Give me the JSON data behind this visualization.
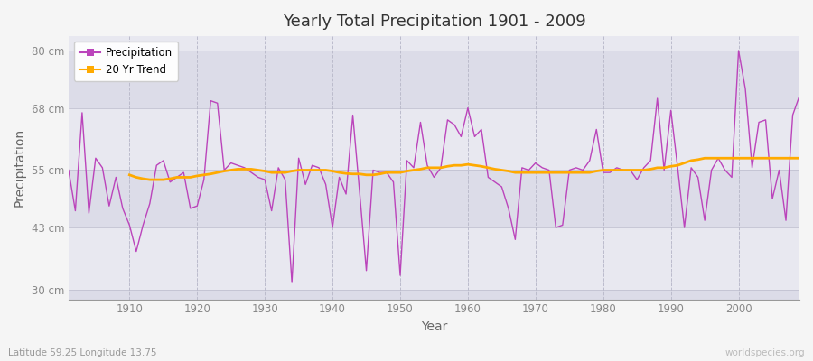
{
  "title": "Yearly Total Precipitation 1901 - 2009",
  "xlabel": "Year",
  "ylabel": "Precipitation",
  "subtitle": "Latitude 59.25 Longitude 13.75",
  "watermark": "worldspecies.org",
  "fig_bg_color": "#f5f5f5",
  "plot_bg_color": "#e8e8f0",
  "band_colors": [
    "#dcdce8",
    "#e8e8f0"
  ],
  "precip_color": "#bb44bb",
  "trend_color": "#ffaa00",
  "ylim": [
    28,
    83
  ],
  "yticks": [
    30,
    43,
    55,
    68,
    80
  ],
  "ytick_labels": [
    "30 cm",
    "43 cm",
    "55 cm",
    "68 cm",
    "80 cm"
  ],
  "xlim": [
    1901,
    2009
  ],
  "xticks": [
    1910,
    1920,
    1930,
    1940,
    1950,
    1960,
    1970,
    1980,
    1990,
    2000
  ],
  "years": [
    1901,
    1902,
    1903,
    1904,
    1905,
    1906,
    1907,
    1908,
    1909,
    1910,
    1911,
    1912,
    1913,
    1914,
    1915,
    1916,
    1917,
    1918,
    1919,
    1920,
    1921,
    1922,
    1923,
    1924,
    1925,
    1926,
    1927,
    1928,
    1929,
    1930,
    1931,
    1932,
    1933,
    1934,
    1935,
    1936,
    1937,
    1938,
    1939,
    1940,
    1941,
    1942,
    1943,
    1944,
    1945,
    1946,
    1947,
    1948,
    1949,
    1950,
    1951,
    1952,
    1953,
    1954,
    1955,
    1956,
    1957,
    1958,
    1959,
    1960,
    1961,
    1962,
    1963,
    1964,
    1965,
    1966,
    1967,
    1968,
    1969,
    1970,
    1971,
    1972,
    1973,
    1974,
    1975,
    1976,
    1977,
    1978,
    1979,
    1980,
    1981,
    1982,
    1983,
    1984,
    1985,
    1986,
    1987,
    1988,
    1989,
    1990,
    1991,
    1992,
    1993,
    1994,
    1995,
    1996,
    1997,
    1998,
    1999,
    2000,
    2001,
    2002,
    2003,
    2004,
    2005,
    2006,
    2007,
    2008,
    2009
  ],
  "precip": [
    55.0,
    46.5,
    67.0,
    46.0,
    57.5,
    55.5,
    47.5,
    53.5,
    47.0,
    43.5,
    38.0,
    43.5,
    48.0,
    56.0,
    57.0,
    52.5,
    53.5,
    54.5,
    47.0,
    47.5,
    53.0,
    69.5,
    69.0,
    55.0,
    56.5,
    56.0,
    55.5,
    54.5,
    53.5,
    53.0,
    46.5,
    55.5,
    53.0,
    31.5,
    57.5,
    52.0,
    56.0,
    55.5,
    52.0,
    43.0,
    53.5,
    50.0,
    66.5,
    50.5,
    34.0,
    55.0,
    54.5,
    54.5,
    52.5,
    33.0,
    57.0,
    55.5,
    65.0,
    56.0,
    53.5,
    55.5,
    65.5,
    64.5,
    62.0,
    68.0,
    62.0,
    63.5,
    53.5,
    52.5,
    51.5,
    47.0,
    40.5,
    55.5,
    55.0,
    56.5,
    55.5,
    55.0,
    43.0,
    43.5,
    55.0,
    55.5,
    55.0,
    57.0,
    63.5,
    54.5,
    54.5,
    55.5,
    55.0,
    55.0,
    53.0,
    55.5,
    57.0,
    70.0,
    55.0,
    67.5,
    55.5,
    43.0,
    55.5,
    53.5,
    44.5,
    55.0,
    57.5,
    55.0,
    53.5,
    80.0,
    72.0,
    55.5,
    65.0,
    65.5,
    49.0,
    55.0,
    44.5,
    66.5,
    70.5
  ],
  "trend": [
    null,
    null,
    null,
    null,
    null,
    null,
    null,
    null,
    null,
    54.0,
    53.5,
    53.2,
    53.0,
    53.0,
    53.0,
    53.2,
    53.5,
    53.5,
    53.5,
    53.8,
    54.0,
    54.2,
    54.5,
    54.8,
    55.0,
    55.2,
    55.2,
    55.2,
    55.0,
    54.8,
    54.5,
    54.5,
    54.5,
    54.8,
    55.0,
    55.0,
    55.0,
    55.0,
    55.0,
    54.8,
    54.5,
    54.3,
    54.2,
    54.2,
    54.0,
    54.0,
    54.2,
    54.5,
    54.5,
    54.5,
    54.8,
    55.0,
    55.2,
    55.5,
    55.5,
    55.5,
    55.8,
    56.0,
    56.0,
    56.2,
    56.0,
    55.8,
    55.5,
    55.2,
    55.0,
    54.8,
    54.5,
    54.5,
    54.5,
    54.5,
    54.5,
    54.5,
    54.5,
    54.5,
    54.5,
    54.5,
    54.5,
    54.5,
    54.8,
    55.0,
    55.0,
    55.0,
    55.0,
    55.0,
    55.0,
    55.0,
    55.2,
    55.5,
    55.5,
    55.8,
    56.0,
    56.5,
    57.0,
    57.2,
    57.5,
    57.5,
    57.5,
    57.5,
    57.5,
    57.5,
    57.5,
    57.5,
    57.5,
    57.5,
    57.5,
    57.5,
    57.5,
    57.5,
    57.5
  ]
}
